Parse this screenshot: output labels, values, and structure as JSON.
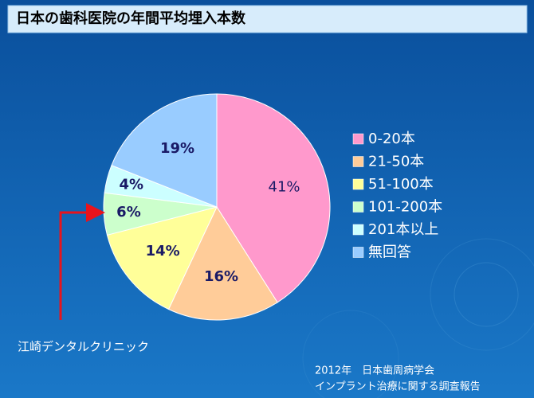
{
  "chart_data": {
    "type": "pie",
    "title": "日本の歯科医院の年間平均埋入本数",
    "categories": [
      "0-20本",
      "21-50本",
      "51-100本",
      "101-200本",
      "201本以上",
      "無回答"
    ],
    "values": [
      41,
      16,
      14,
      6,
      4,
      19
    ],
    "value_labels": [
      "41%",
      "16%",
      "14%",
      "6%",
      "4%",
      "19%"
    ],
    "colors": [
      "#ff99cc",
      "#ffcc99",
      "#ffff99",
      "#ccffcc",
      "#ccffff",
      "#99ccff"
    ],
    "annotation": "江崎デンタルクリニック",
    "source": [
      "2012年　日本歯周病学会",
      "インプラント治療に関する調査報告"
    ]
  }
}
